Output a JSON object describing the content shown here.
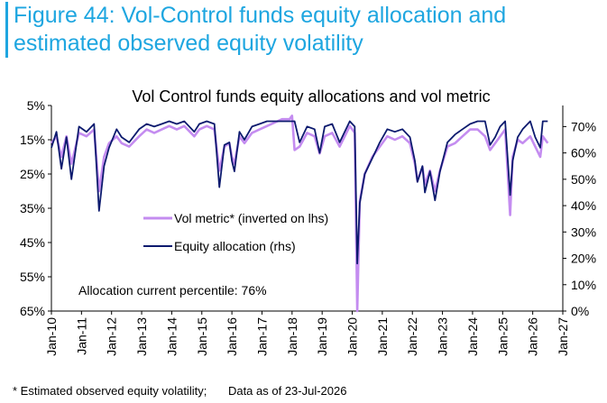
{
  "figure": {
    "title_line1": "Figure 44: Vol-Control funds equity allocation and",
    "title_line2": "estimated observed equity volatility"
  },
  "footnote": {
    "note": "* Estimated observed equity volatility;",
    "as_of": "Data as of 23-Jul-2026"
  },
  "colors": {
    "title": "#1ea6e0",
    "vol_metric": "#c48cf0",
    "equity_allocation": "#0c1a6e"
  },
  "chart_data": {
    "type": "line",
    "title": "Vol Control funds equity allocations and vol metric",
    "annotation": "Allocation current percentile: 76%",
    "x_ticks": [
      "Jan-10",
      "Jan-11",
      "Jan-12",
      "Jan-13",
      "Jan-14",
      "Jan-15",
      "Jan-16",
      "Jan-17",
      "Jan-18",
      "Jan-19",
      "Jan-20",
      "Jan-21",
      "Jan-22",
      "Jan-23",
      "Jan-24",
      "Jan-25",
      "Jan-26",
      "Jan-27"
    ],
    "x_range": [
      "2010-01",
      "2027-01"
    ],
    "y_left": {
      "ticks": [
        "5%",
        "15%",
        "25%",
        "35%",
        "45%",
        "55%",
        "65%"
      ],
      "range": [
        5,
        65
      ],
      "inverted": true
    },
    "y_right": {
      "ticks": [
        "0%",
        "10%",
        "20%",
        "30%",
        "40%",
        "50%",
        "60%",
        "70%"
      ],
      "range": [
        0,
        78
      ]
    },
    "grid": false,
    "legend": "inside-middle-left",
    "series": [
      {
        "name": "Vol metric* (inverted on lhs)",
        "axis": "left",
        "x": [
          "2010-01",
          "2010-03",
          "2010-05",
          "2010-07",
          "2010-09",
          "2010-12",
          "2011-03",
          "2011-06",
          "2011-08",
          "2011-10",
          "2011-12",
          "2012-03",
          "2012-05",
          "2012-08",
          "2012-12",
          "2013-03",
          "2013-06",
          "2013-09",
          "2013-12",
          "2014-03",
          "2014-06",
          "2014-10",
          "2014-12",
          "2015-03",
          "2015-06",
          "2015-08",
          "2015-10",
          "2015-12",
          "2016-01",
          "2016-02",
          "2016-04",
          "2016-06",
          "2016-09",
          "2016-12",
          "2017-03",
          "2017-06",
          "2017-09",
          "2017-12",
          "2018-01",
          "2018-02",
          "2018-04",
          "2018-07",
          "2018-10",
          "2018-12",
          "2019-02",
          "2019-05",
          "2019-08",
          "2019-12",
          "2020-02",
          "2020-03",
          "2020-04",
          "2020-06",
          "2020-09",
          "2020-12",
          "2021-03",
          "2021-06",
          "2021-09",
          "2021-12",
          "2022-02",
          "2022-03",
          "2022-05",
          "2022-06",
          "2022-08",
          "2022-10",
          "2022-12",
          "2023-03",
          "2023-06",
          "2023-09",
          "2023-12",
          "2024-03",
          "2024-06",
          "2024-08",
          "2024-10",
          "2024-12",
          "2025-02",
          "2025-04",
          "2025-05",
          "2025-07",
          "2025-09",
          "2025-12",
          "2026-02",
          "2026-04",
          "2026-05",
          "2026-07"
        ],
        "values": [
          16,
          14,
          20,
          14,
          22,
          13,
          14,
          12,
          30,
          20,
          16,
          14,
          16,
          17,
          14,
          12,
          13,
          12,
          11,
          12,
          11,
          14,
          12,
          11,
          12,
          24,
          17,
          16,
          20,
          22,
          14,
          16,
          13,
          12,
          11,
          10,
          9,
          9,
          8,
          18,
          17,
          13,
          14,
          19,
          14,
          13,
          17,
          11,
          13,
          65,
          33,
          25,
          20,
          17,
          14,
          15,
          14,
          16,
          22,
          27,
          23,
          28,
          24,
          30,
          24,
          17,
          16,
          14,
          12,
          12,
          14,
          18,
          16,
          14,
          12,
          37,
          20,
          15,
          16,
          14,
          17,
          20,
          14,
          16
        ]
      },
      {
        "name": "Equity allocation (rhs)",
        "axis": "right",
        "x": [
          "2010-01",
          "2010-03",
          "2010-05",
          "2010-07",
          "2010-09",
          "2010-12",
          "2011-03",
          "2011-06",
          "2011-08",
          "2011-10",
          "2011-12",
          "2012-03",
          "2012-05",
          "2012-08",
          "2012-12",
          "2013-03",
          "2013-06",
          "2013-09",
          "2013-12",
          "2014-03",
          "2014-06",
          "2014-10",
          "2014-12",
          "2015-03",
          "2015-06",
          "2015-08",
          "2015-10",
          "2015-12",
          "2016-01",
          "2016-02",
          "2016-04",
          "2016-06",
          "2016-09",
          "2016-12",
          "2017-03",
          "2017-06",
          "2017-09",
          "2017-12",
          "2018-01",
          "2018-02",
          "2018-04",
          "2018-07",
          "2018-10",
          "2018-12",
          "2019-02",
          "2019-05",
          "2019-08",
          "2019-12",
          "2020-02",
          "2020-03",
          "2020-04",
          "2020-06",
          "2020-09",
          "2020-12",
          "2021-03",
          "2021-06",
          "2021-09",
          "2021-12",
          "2022-02",
          "2022-03",
          "2022-05",
          "2022-06",
          "2022-08",
          "2022-10",
          "2022-12",
          "2023-03",
          "2023-06",
          "2023-09",
          "2023-12",
          "2024-03",
          "2024-06",
          "2024-08",
          "2024-10",
          "2024-12",
          "2025-02",
          "2025-04",
          "2025-05",
          "2025-07",
          "2025-09",
          "2025-12",
          "2026-02",
          "2026-04",
          "2026-05",
          "2026-07"
        ],
        "values": [
          62,
          68,
          54,
          66,
          50,
          70,
          68,
          71,
          38,
          55,
          62,
          69,
          66,
          64,
          69,
          71,
          70,
          71,
          72,
          71,
          72,
          68,
          71,
          72,
          71,
          47,
          63,
          64,
          57,
          53,
          68,
          65,
          70,
          71,
          72,
          72,
          72,
          72,
          72,
          72,
          64,
          70,
          69,
          60,
          70,
          71,
          64,
          72,
          70,
          18,
          41,
          52,
          58,
          64,
          69,
          68,
          69,
          66,
          57,
          49,
          55,
          45,
          53,
          42,
          53,
          64,
          67,
          69,
          71,
          72,
          72,
          63,
          66,
          70,
          72,
          44,
          57,
          66,
          69,
          72,
          66,
          62,
          72,
          72
        ]
      }
    ]
  }
}
